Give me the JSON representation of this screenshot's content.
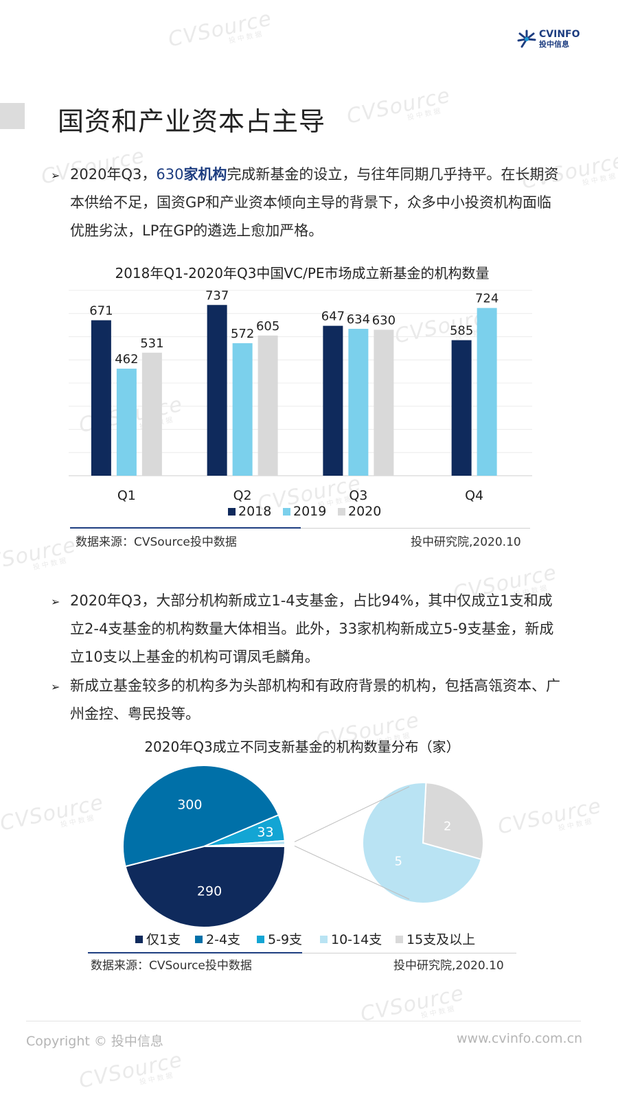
{
  "logo": {
    "brand": "CVINFO",
    "sub": "投中信息",
    "colors": {
      "primary": "#1d3d80",
      "accent": "#1d9ad6"
    }
  },
  "watermark_text": "CVSource",
  "watermark_sub": "投中数据",
  "page_title": "国资和产业资本占主导",
  "bullet_symbol": "➢",
  "para1": {
    "lead": "2020年Q3，",
    "highlight_num": "630",
    "highlight_bold": "家机构",
    "rest": "完成新基金的设立，与往年同期几乎持平。在长期资本供给不足，国资GP和产业资本倾向主导的背景下，众多中小投资机构面临优胜劣汰，LP在GP的遴选上愈加严格。"
  },
  "para2": "2020年Q3，大部分机构新成立1-4支基金，占比94%，其中仅成立1支和成立2-4支基金的机构数量大体相当。此外，33家机构新成立5-9支基金，新成立10支以上基金的机构可谓凤毛麟角。",
  "para3": "新成立基金较多的机构多为头部机构和有政府背景的机构，包括高瓴资本、广州金控、粤民投等。",
  "source1": {
    "left": "数据来源：CVSource投中数据",
    "right": "投中研究院,2020.10"
  },
  "source2": {
    "left": "数据来源：CVSource投中数据",
    "right": "投中研究院,2020.10"
  },
  "footer": {
    "copyright": "Copyright © 投中信息",
    "url": "www.cvinfo.com.cn"
  },
  "chart_data": [
    {
      "type": "bar",
      "title": "2018年Q1-2020年Q3中国VC/PE市场成立新基金的机构数量",
      "categories": [
        "Q1",
        "Q2",
        "Q3",
        "Q4"
      ],
      "series": [
        {
          "name": "2018",
          "color": "#0f2a5c",
          "values": [
            671,
            737,
            647,
            585
          ]
        },
        {
          "name": "2019",
          "color": "#7bd0ec",
          "values": [
            462,
            572,
            634,
            724
          ]
        },
        {
          "name": "2020",
          "color": "#d9d9d9",
          "values": [
            531,
            605,
            630,
            null
          ]
        }
      ],
      "ylim": [
        0,
        800
      ],
      "grid": true,
      "legend": "bottom"
    },
    {
      "type": "pie",
      "title": "2020年Q3成立不同支新基金的机构数量分布（家）",
      "slices": [
        {
          "label": "仅1支",
          "value": 290,
          "color": "#0f2a5c"
        },
        {
          "label": "2-4支",
          "value": 300,
          "color": "#0070a8"
        },
        {
          "label": "5-9支",
          "value": 33,
          "color": "#13a5d4"
        },
        {
          "label": "10-14支",
          "value": 5,
          "color": "#b9e3f3"
        },
        {
          "label": "15支及以上",
          "value": 2,
          "color": "#d9d9d9"
        }
      ],
      "breakout": {
        "values": [
          5,
          2
        ],
        "labels": [
          "5",
          "2"
        ]
      },
      "legend": "bottom"
    }
  ]
}
